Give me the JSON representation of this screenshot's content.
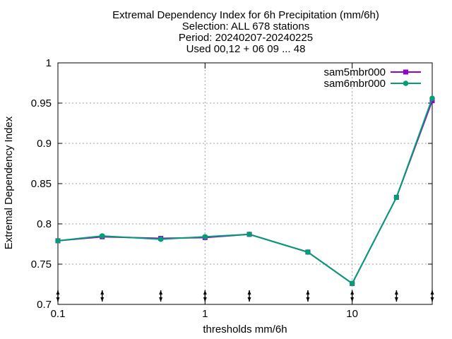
{
  "chart_data": {
    "type": "line",
    "title_lines": [
      "Extremal Dependency Index  for 6h Precipitation (mm/6h)",
      "Selection: ALL    678 stations",
      "Period: 20240207-20240225",
      "Used 00,12 + 06 09 ... 48"
    ],
    "xlabel": "thresholds mm/6h",
    "ylabel": "Extremal Dependency Index",
    "x_scale": "log",
    "xlim": [
      0.1,
      35
    ],
    "ylim": [
      0.7,
      1.0
    ],
    "x_ticks": [
      {
        "value": 0.1,
        "label": "0.1"
      },
      {
        "value": 1,
        "label": "1"
      },
      {
        "value": 10,
        "label": "10"
      }
    ],
    "y_ticks": [
      {
        "value": 0.7,
        "label": "0.7"
      },
      {
        "value": 0.75,
        "label": "0.75"
      },
      {
        "value": 0.8,
        "label": "0.8"
      },
      {
        "value": 0.85,
        "label": "0.85"
      },
      {
        "value": 0.9,
        "label": "0.9"
      },
      {
        "value": 0.95,
        "label": "0.95"
      },
      {
        "value": 1.0,
        "label": "1"
      }
    ],
    "x": [
      0.1,
      0.2,
      0.5,
      1,
      2,
      5,
      10,
      20,
      35
    ],
    "series": [
      {
        "name": "sam5mbr000",
        "color": "#9400d3",
        "marker": "square",
        "values": [
          0.779,
          0.784,
          0.782,
          0.783,
          0.787,
          0.765,
          0.726,
          0.833,
          0.953
        ]
      },
      {
        "name": "sam6mbr000",
        "color": "#009e73",
        "marker": "circle",
        "values": [
          0.779,
          0.785,
          0.781,
          0.784,
          0.787,
          0.765,
          0.726,
          0.833,
          0.956
        ]
      }
    ],
    "grid": true,
    "legend_position": "top-right"
  }
}
